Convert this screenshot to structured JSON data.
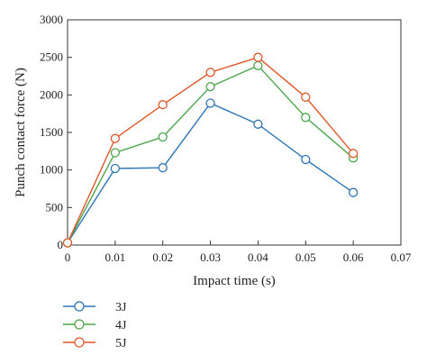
{
  "chart_data": {
    "type": "line",
    "title": "",
    "xlabel": "Impact time (s)",
    "ylabel": "Punch contact force (N)",
    "xlim": [
      0,
      0.07
    ],
    "ylim": [
      0,
      3000
    ],
    "x_ticks": [
      "0",
      "0.01",
      "0.02",
      "0.03",
      "0.04",
      "0.05",
      "0.06",
      "0.07"
    ],
    "y_ticks": [
      "0",
      "500",
      "1000",
      "1500",
      "2000",
      "2500",
      "3000"
    ],
    "x": [
      0,
      0.01,
      0.02,
      0.03,
      0.04,
      0.05,
      0.06
    ],
    "series": [
      {
        "name": "3J",
        "color": "#2e75b6",
        "values": [
          30,
          1020,
          1030,
          1890,
          1610,
          1140,
          700
        ]
      },
      {
        "name": "4J",
        "color": "#4ca64c",
        "values": [
          30,
          1230,
          1440,
          2110,
          2390,
          1700,
          1160
        ]
      },
      {
        "name": "5J",
        "color": "#e0572a",
        "values": [
          30,
          1420,
          1870,
          2300,
          2500,
          1970,
          1220
        ]
      }
    ],
    "legend_position": "bottom-left, below plot",
    "grid": false
  }
}
